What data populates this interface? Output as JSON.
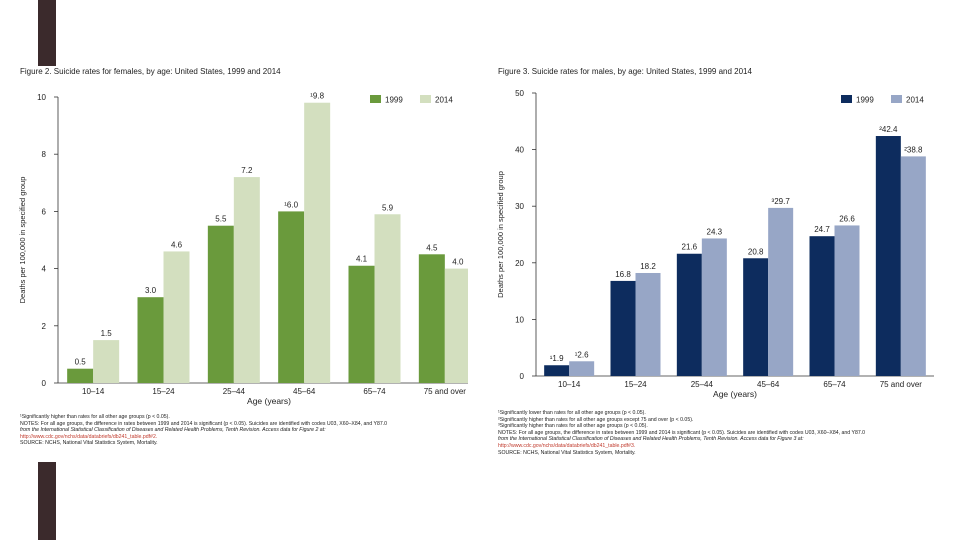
{
  "chart_data": [
    {
      "type": "bar",
      "title": "Figure 2. Suicide rates for females, by age: United States, 1999 and 2014",
      "xlabel": "Age (years)",
      "ylabel": "Deaths per 100,000 in specified group",
      "ylim": [
        0,
        10
      ],
      "yticks": [
        "0",
        "2",
        "4",
        "6",
        "8",
        "10"
      ],
      "categories": [
        "10–14",
        "15–24",
        "25–44",
        "45–64",
        "65–74",
        "75 and over"
      ],
      "series": [
        {
          "name": "1999",
          "color": "#6a9a3c",
          "values": [
            0.5,
            3.0,
            5.5,
            6.0,
            4.1,
            4.5
          ],
          "labels": [
            "0.5",
            "3.0",
            "5.5",
            "¹6.0",
            "4.1",
            "4.5"
          ]
        },
        {
          "name": "2014",
          "color": "#d3dfbf",
          "values": [
            1.5,
            4.6,
            7.2,
            9.8,
            5.9,
            4.0
          ],
          "labels": [
            "1.5",
            "4.6",
            "7.2",
            "¹9.8",
            "5.9",
            "4.0"
          ]
        }
      ],
      "legend": "top-right",
      "notes": [
        "¹Significantly higher than rates for all other age groups (p < 0.05).",
        "NOTES: For all age groups, the difference in rates between 1999 and 2014 is significant (p < 0.05). Suicides are identified with codes U03, X60–X84, and Y87.0",
        "from the International Statistical Classification of Diseases and Related Health Problems, Tenth Revision. Access data for Figure 2 at:",
        "http://www.cdc.gov/nchs/data/databriefs/db241_table.pdf#2.",
        "SOURCE: NCHS, National Vital Statistics System, Mortality."
      ]
    },
    {
      "type": "bar",
      "title": "Figure 3. Suicide rates for males, by age: United States, 1999 and 2014",
      "xlabel": "Age (years)",
      "ylabel": "Deaths per 100,000 in specified group",
      "ylim": [
        0,
        50
      ],
      "yticks": [
        "0",
        "10",
        "20",
        "30",
        "40",
        "50"
      ],
      "categories": [
        "10–14",
        "15–24",
        "25–44",
        "45–64",
        "65–74",
        "75 and over"
      ],
      "series": [
        {
          "name": "1999",
          "color": "#0d2c5e",
          "values": [
            1.9,
            16.8,
            21.6,
            20.8,
            24.7,
            42.4
          ],
          "labels": [
            "¹1.9",
            "16.8",
            "21.6",
            "20.8",
            "24.7",
            "²42.4"
          ]
        },
        {
          "name": "2014",
          "color": "#97a6c6",
          "values": [
            2.6,
            18.2,
            24.3,
            29.7,
            26.6,
            38.8
          ],
          "labels": [
            "¹2.6",
            "18.2",
            "24.3",
            "³29.7",
            "26.6",
            "²38.8"
          ]
        }
      ],
      "legend": "top-right",
      "notes": [
        "¹Significantly lower than rates for all other age groups (p < 0.05).",
        "²Significantly higher than rates for all other age groups except 75 and over (p < 0.05).",
        "³Significantly higher than rates for all other age groups (p < 0.05).",
        "NOTES: For all age groups, the difference in rates between 1999 and 2014 is significant (p < 0.05). Suicides are identified with codes U03, X60–X84, and Y87.0",
        "from the International Statistical Classification of Diseases and Related Health Problems, Tenth Revision. Access data for Figure 3 at:",
        "http://www.cdc.gov/nchs/data/databriefs/db241_table.pdf#3.",
        "SOURCE: NCHS, National Vital Statistics System, Mortality."
      ]
    }
  ]
}
